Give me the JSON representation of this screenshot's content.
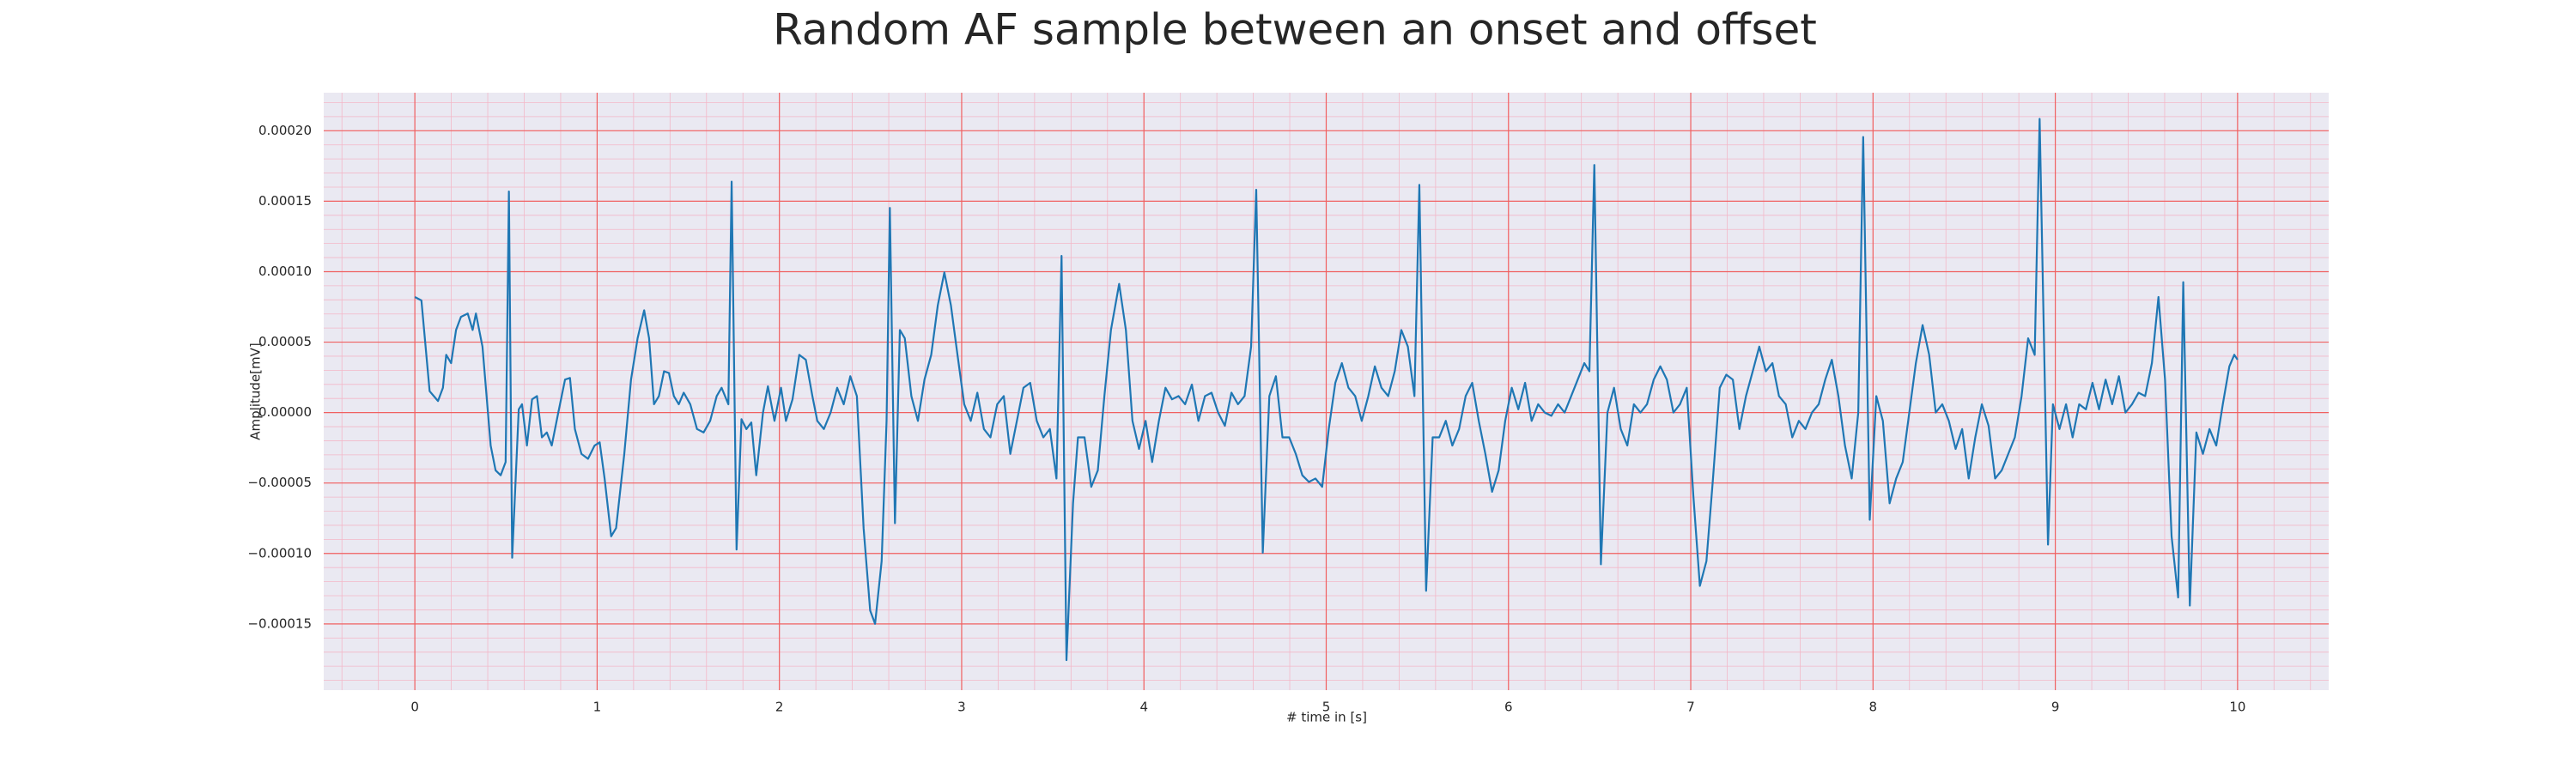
{
  "chart_data": {
    "type": "line",
    "title": "Random AF sample between an onset and offset",
    "xlabel": "# time in [s]",
    "ylabel": "Amplitude[mV]",
    "color": "#1f77b4",
    "grid": true,
    "minor_grid": true,
    "xlim": [
      -0.5,
      10.5
    ],
    "ylim": [
      -0.000197,
      0.000227
    ],
    "xticks": [
      0,
      1,
      2,
      3,
      4,
      5,
      6,
      7,
      8,
      9,
      10
    ],
    "yticks": [
      {
        "value": -0.00015,
        "label": "−0.00015"
      },
      {
        "value": -0.0001,
        "label": "−0.00010"
      },
      {
        "value": -5e-05,
        "label": "−0.00005"
      },
      {
        "value": 0,
        "label": "0.00000"
      },
      {
        "value": 5e-05,
        "label": "0.00005"
      },
      {
        "value": 0.0001,
        "label": "0.00010"
      },
      {
        "value": 0.00015,
        "label": "0.00015"
      },
      {
        "value": 0.0002,
        "label": "0.00020"
      }
    ],
    "x": [
      0,
      0.036,
      0.081,
      0.127,
      0.154,
      0.172,
      0.199,
      0.226,
      0.253,
      0.29,
      0.317,
      0.335,
      0.371,
      0.416,
      0.443,
      0.471,
      0.498,
      0.516,
      0.534,
      0.57,
      0.588,
      0.615,
      0.643,
      0.67,
      0.697,
      0.724,
      0.751,
      0.787,
      0.824,
      0.851,
      0.878,
      0.914,
      0.95,
      0.986,
      1.014,
      1.041,
      1.077,
      1.104,
      1.149,
      1.186,
      1.222,
      1.258,
      1.285,
      1.312,
      1.339,
      1.367,
      1.394,
      1.421,
      1.448,
      1.475,
      1.511,
      1.548,
      1.584,
      1.62,
      1.656,
      1.683,
      1.72,
      1.738,
      1.765,
      1.792,
      1.819,
      1.846,
      1.873,
      1.91,
      1.937,
      1.973,
      2.009,
      2.036,
      2.072,
      2.109,
      2.145,
      2.181,
      2.208,
      2.244,
      2.281,
      2.317,
      2.353,
      2.389,
      2.425,
      2.462,
      2.498,
      2.525,
      2.561,
      2.588,
      2.606,
      2.634,
      2.661,
      2.688,
      2.724,
      2.76,
      2.796,
      2.833,
      2.869,
      2.905,
      2.941,
      2.977,
      3.014,
      3.05,
      3.086,
      3.122,
      3.158,
      3.195,
      3.231,
      3.267,
      3.303,
      3.339,
      3.376,
      3.412,
      3.448,
      3.484,
      3.52,
      3.548,
      3.575,
      3.611,
      3.638,
      3.674,
      3.711,
      3.747,
      3.783,
      3.819,
      3.864,
      3.901,
      3.937,
      3.973,
      4.009,
      4.045,
      4.082,
      4.118,
      4.154,
      4.19,
      4.226,
      4.263,
      4.299,
      4.335,
      4.371,
      4.407,
      4.444,
      4.48,
      4.516,
      4.552,
      4.588,
      4.616,
      4.652,
      4.688,
      4.724,
      4.76,
      4.797,
      4.833,
      4.869,
      4.905,
      4.941,
      4.978,
      5.014,
      5.05,
      5.086,
      5.122,
      5.159,
      5.195,
      5.231,
      5.267,
      5.303,
      5.34,
      5.376,
      5.412,
      5.448,
      5.484,
      5.511,
      5.548,
      5.584,
      5.62,
      5.656,
      5.692,
      5.729,
      5.765,
      5.801,
      5.837,
      5.873,
      5.91,
      5.946,
      5.982,
      6.018,
      6.054,
      6.091,
      6.127,
      6.163,
      6.199,
      6.235,
      6.272,
      6.308,
      6.344,
      6.38,
      6.416,
      6.444,
      6.471,
      6.507,
      6.543,
      6.579,
      6.616,
      6.652,
      6.688,
      6.724,
      6.76,
      6.797,
      6.833,
      6.869,
      6.905,
      6.941,
      6.978,
      7.014,
      7.05,
      7.086,
      7.122,
      7.159,
      7.195,
      7.231,
      7.267,
      7.303,
      7.34,
      7.376,
      7.412,
      7.448,
      7.484,
      7.521,
      7.557,
      7.593,
      7.629,
      7.665,
      7.702,
      7.738,
      7.774,
      7.81,
      7.846,
      7.883,
      7.919,
      7.946,
      7.982,
      8.018,
      8.054,
      8.091,
      8.127,
      8.163,
      8.199,
      8.235,
      8.272,
      8.308,
      8.344,
      8.38,
      8.416,
      8.453,
      8.489,
      8.525,
      8.561,
      8.597,
      8.634,
      8.67,
      8.706,
      8.742,
      8.778,
      8.815,
      8.851,
      8.887,
      8.914,
      8.96,
      8.987,
      9.023,
      9.059,
      9.095,
      9.131,
      9.168,
      9.204,
      9.24,
      9.276,
      9.312,
      9.349,
      9.385,
      9.421,
      9.457,
      9.493,
      9.53,
      9.566,
      9.602,
      9.638,
      9.674,
      9.702,
      9.738,
      9.774,
      9.81,
      9.846,
      9.883,
      9.919,
      9.955,
      9.982,
      10.0
    ],
    "values": [
      8.2e-05,
      7.96e-05,
      1.52e-05,
      8.2e-06,
      1.76e-05,
      4.1e-05,
      3.51e-05,
      5.86e-05,
      6.79e-05,
      7.03e-05,
      5.86e-05,
      7.03e-05,
      4.68e-05,
      -2.34e-05,
      -4.1e-05,
      -4.45e-05,
      -3.51e-05,
      0.0001569,
      -0.000103,
      2.3e-06,
      5.9e-06,
      -2.34e-05,
      9.4e-06,
      1.17e-05,
      -1.76e-05,
      -1.41e-05,
      -2.34e-05,
      0,
      2.34e-05,
      2.46e-05,
      -1.17e-05,
      -2.93e-05,
      -3.28e-05,
      -2.34e-05,
      -2.11e-05,
      -4.68e-05,
      -8.78e-05,
      -8.2e-05,
      -2.93e-05,
      2.34e-05,
      5.27e-05,
      7.26e-05,
      5.27e-05,
      5.9e-06,
      1.17e-05,
      2.93e-05,
      2.81e-05,
      1.17e-05,
      5.9e-06,
      1.41e-05,
      5.9e-06,
      -1.17e-05,
      -1.41e-05,
      -5.9e-06,
      1.17e-05,
      1.76e-05,
      5.9e-06,
      0.0001639,
      -9.72e-05,
      -4.7e-06,
      -1.17e-05,
      -7e-06,
      -4.45e-05,
      0,
      1.87e-05,
      -5.9e-06,
      1.76e-05,
      -5.9e-06,
      9.4e-06,
      4.1e-05,
      3.75e-05,
      1.17e-05,
      -5.9e-06,
      -1.17e-05,
      0,
      1.76e-05,
      5.9e-06,
      2.58e-05,
      1.17e-05,
      -8.2e-05,
      -0.0001405,
      -0.0001499,
      -0.0001054,
      -5.9e-06,
      0.0001452,
      -7.85e-05,
      5.86e-05,
      5.27e-05,
      1.17e-05,
      -5.9e-06,
      2.34e-05,
      4.1e-05,
      7.61e-05,
      9.95e-05,
      7.61e-05,
      4.1e-05,
      5.9e-06,
      -5.9e-06,
      1.41e-05,
      -1.17e-05,
      -1.76e-05,
      5.9e-06,
      1.17e-05,
      -2.93e-05,
      -5.9e-06,
      1.76e-05,
      2.11e-05,
      -5.9e-06,
      -1.76e-05,
      -1.17e-05,
      -4.68e-05,
      0.0001112,
      -0.0001757,
      -6.44e-05,
      -1.76e-05,
      -1.76e-05,
      -5.27e-05,
      -4.1e-05,
      1.17e-05,
      5.86e-05,
      9.13e-05,
      5.86e-05,
      -5.9e-06,
      -2.58e-05,
      -5.9e-06,
      -3.51e-05,
      -5.9e-06,
      1.76e-05,
      9.4e-06,
      1.17e-05,
      5.9e-06,
      1.99e-05,
      -5.9e-06,
      1.17e-05,
      1.41e-05,
      0,
      -9.4e-06,
      1.41e-05,
      5.9e-06,
      1.17e-05,
      4.68e-05,
      0.0001581,
      -9.95e-05,
      1.17e-05,
      2.58e-05,
      -1.76e-05,
      -1.76e-05,
      -2.93e-05,
      -4.45e-05,
      -4.92e-05,
      -4.68e-05,
      -5.27e-05,
      -1.17e-05,
      2.11e-05,
      3.51e-05,
      1.76e-05,
      1.17e-05,
      -5.9e-06,
      1.17e-05,
      3.28e-05,
      1.76e-05,
      1.17e-05,
      2.93e-05,
      5.86e-05,
      4.68e-05,
      1.17e-05,
      0.0001616,
      -0.0001265,
      -1.76e-05,
      -1.76e-05,
      -5.9e-06,
      -2.34e-05,
      -1.17e-05,
      1.17e-05,
      2.11e-05,
      -5.9e-06,
      -2.93e-05,
      -5.62e-05,
      -4.1e-05,
      -5.9e-06,
      1.76e-05,
      2.3e-06,
      2.11e-05,
      -5.9e-06,
      5.9e-06,
      0,
      -2.3e-06,
      5.9e-06,
      0,
      1.17e-05,
      2.34e-05,
      3.51e-05,
      2.93e-05,
      0.0001757,
      -0.0001077,
      0,
      1.76e-05,
      -1.17e-05,
      -2.34e-05,
      5.9e-06,
      0,
      5.9e-06,
      2.34e-05,
      3.28e-05,
      2.34e-05,
      0,
      5.9e-06,
      1.76e-05,
      -5.86e-05,
      -0.000123,
      -0.0001054,
      -4.68e-05,
      1.76e-05,
      2.69e-05,
      2.34e-05,
      -1.17e-05,
      1.17e-05,
      2.93e-05,
      4.68e-05,
      2.93e-05,
      3.51e-05,
      1.17e-05,
      5.9e-06,
      -1.76e-05,
      -5.9e-06,
      -1.17e-05,
      0,
      5.9e-06,
      2.34e-05,
      3.75e-05,
      1.17e-05,
      -2.34e-05,
      -4.68e-05,
      0,
      0.0001956,
      -7.61e-05,
      1.17e-05,
      -5.9e-06,
      -6.44e-05,
      -4.68e-05,
      -3.51e-05,
      0,
      3.51e-05,
      6.21e-05,
      4.1e-05,
      0,
      5.9e-06,
      -5.9e-06,
      -2.58e-05,
      -1.17e-05,
      -4.68e-05,
      -1.76e-05,
      5.9e-06,
      -9.4e-06,
      -4.68e-05,
      -4.1e-05,
      -2.93e-05,
      -1.76e-05,
      1.17e-05,
      5.27e-05,
      4.1e-05,
      0.0002084,
      -9.37e-05,
      5.9e-06,
      -1.17e-05,
      5.9e-06,
      -1.76e-05,
      5.9e-06,
      2.3e-06,
      2.11e-05,
      2.3e-06,
      2.34e-05,
      5.9e-06,
      2.58e-05,
      0,
      5.9e-06,
      1.41e-05,
      1.17e-05,
      3.51e-05,
      8.2e-05,
      2.34e-05,
      -8.78e-05,
      -0.0001312,
      9.25e-05,
      -0.000137,
      -1.41e-05,
      -2.93e-05,
      -1.17e-05,
      -2.34e-05,
      5.9e-06,
      3.28e-05,
      4.1e-05,
      3.75e-05
    ]
  }
}
